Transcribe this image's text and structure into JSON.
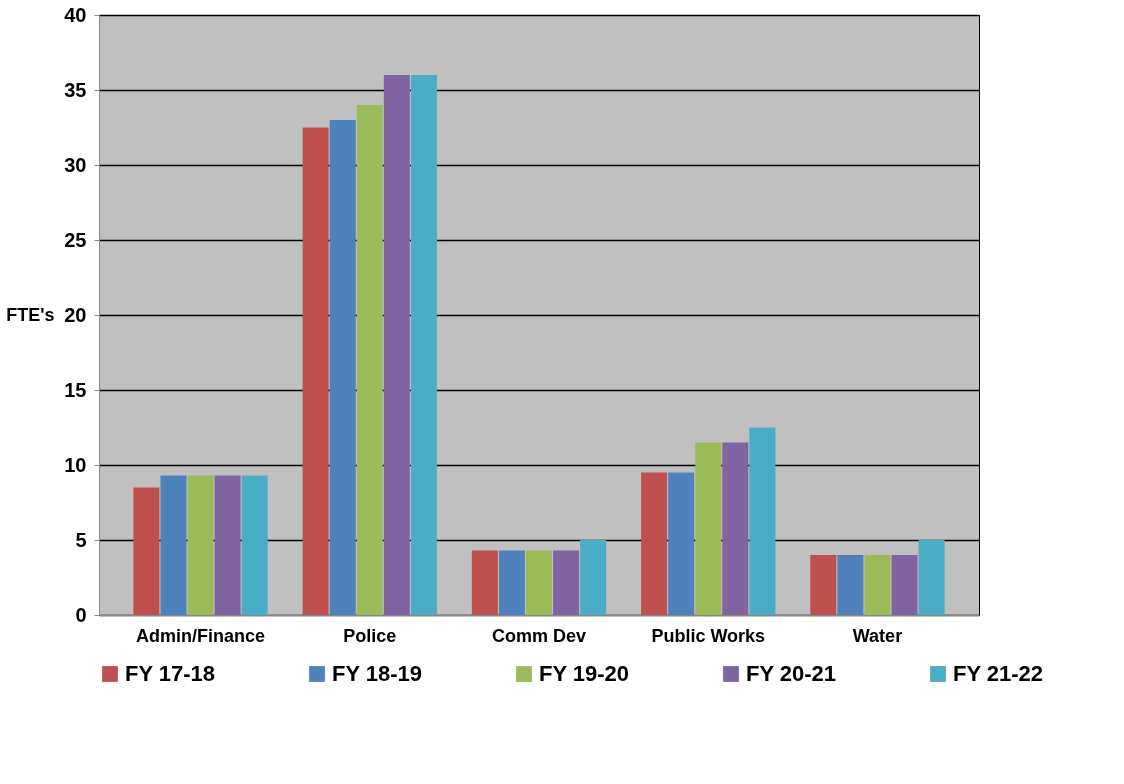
{
  "chart_data": {
    "type": "bar",
    "ylabel": "FTE's",
    "categories": [
      "Admin/Finance",
      "Police",
      "Comm Dev",
      "Public Works",
      "Water"
    ],
    "series": [
      {
        "name": "FY 17-18",
        "color": "#c0504d",
        "values": [
          8.5,
          32.5,
          4.3,
          9.5,
          4
        ]
      },
      {
        "name": "FY 18-19",
        "color": "#4f81bd",
        "values": [
          9.3,
          33,
          4.3,
          9.5,
          4
        ]
      },
      {
        "name": "FY 19-20",
        "color": "#9bbb59",
        "values": [
          9.3,
          34,
          4.3,
          11.5,
          4
        ]
      },
      {
        "name": "FY 20-21",
        "color": "#8064a2",
        "values": [
          9.3,
          36,
          4.3,
          11.5,
          4
        ]
      },
      {
        "name": "FY 21-22",
        "color": "#4bacc6",
        "values": [
          9.3,
          36,
          5,
          12.5,
          5
        ]
      }
    ],
    "ylim": [
      0,
      40
    ],
    "yticks": [
      0,
      5,
      10,
      15,
      20,
      25,
      30,
      35,
      40
    ],
    "grid": "y",
    "legend": "bottom"
  }
}
